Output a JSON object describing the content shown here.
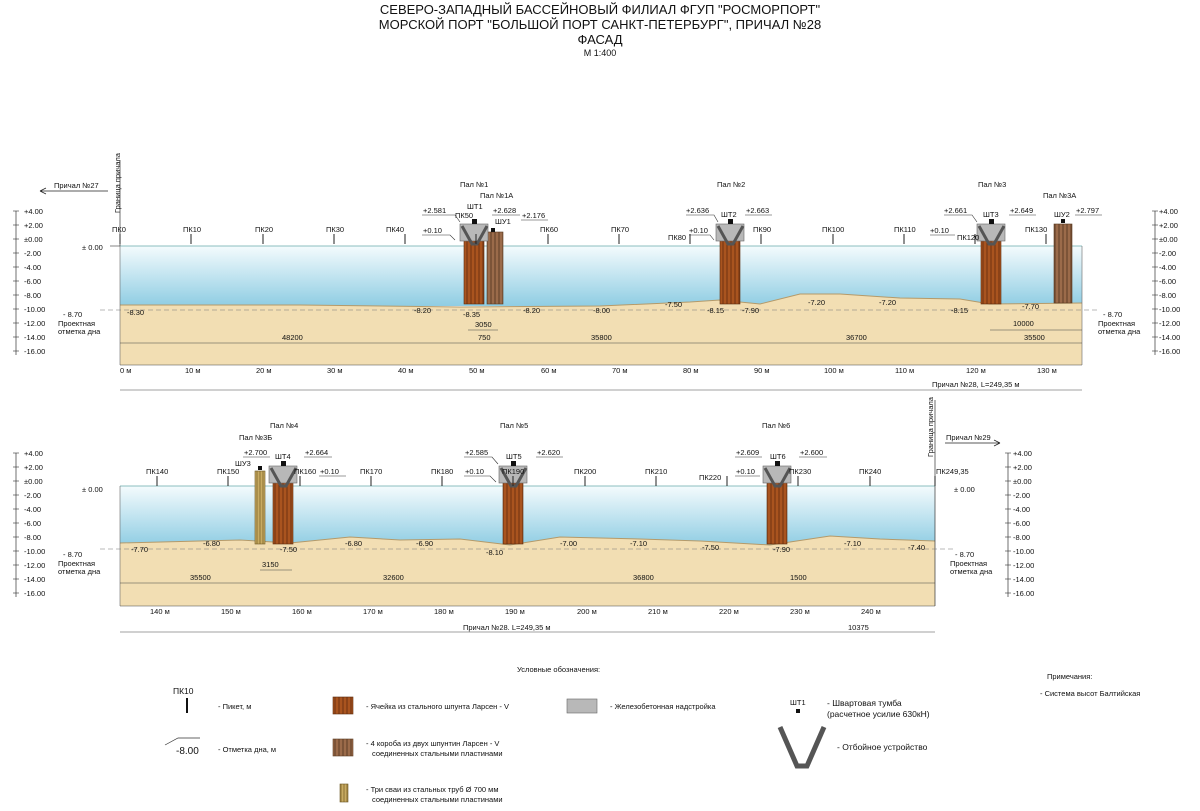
{
  "title": {
    "line1": "СЕВЕРО-ЗАПАДНЫЙ БАССЕЙНОВЫЙ ФИЛИАЛ ФГУП \"РОСМОРПОРТ\"",
    "line2": "МОРСКОЙ ПОРТ \"БОЛЬШОЙ ПОРТ САНКТ-ПЕТЕРБУРГ\", ПРИЧАЛ №28",
    "line3": "ФАСАД",
    "scale": "М 1:400"
  },
  "colors": {
    "water": "#bfe3ef",
    "sand": "#f2deb3",
    "steel": "#a9541f",
    "steel_box": "#9b6b4a",
    "pipes": "#c5a65d",
    "concrete": "#b8b8b8"
  },
  "top": {
    "prichal_left": "Причал №27",
    "granitsa": "Граница причала",
    "zero": "± 0.00",
    "proj_value": "- 8.70",
    "proj_label_1": "Проектная",
    "proj_label_2": "отметка дна",
    "pk_labels": [
      "ПК0",
      "ПК10",
      "ПК20",
      "ПК30",
      "ПК40",
      "ПК50",
      "ПК60",
      "ПК70",
      "ПК80",
      "ПК90",
      "ПК100",
      "ПК110",
      "ПК120",
      "ПК130"
    ],
    "axis": [
      "0 м",
      "10 м",
      "20 м",
      "30 м",
      "40 м",
      "50 м",
      "60 м",
      "70 м",
      "80 м",
      "90 м",
      "100 м",
      "110 м",
      "120 м",
      "130 м"
    ],
    "pal_labels": [
      "Пал №1",
      "Пал №1А",
      "Пал №2",
      "Пал №3",
      "Пал №3А"
    ],
    "bollards": [
      "ШТ1",
      "ШУ1",
      "ШТ2",
      "ШТ3",
      "ШУ2"
    ],
    "elev_tags": [
      "+2.581",
      "+0.10",
      "+2.628",
      "+2.176",
      "+2.636",
      "+0.10",
      "+2.663",
      "+2.661",
      "+0.10",
      "+2.649",
      "+2.797"
    ],
    "depths": [
      "-8.30",
      "-8.20",
      "-8.35",
      "-8.20",
      "-8.00",
      "-7.50",
      "-8.15",
      "-7.90",
      "-7.20",
      "-7.20",
      "-8.15",
      "-7.70"
    ],
    "dims": [
      "48200",
      "750",
      "3050",
      "35800",
      "36700",
      "10000",
      "35500"
    ],
    "total": "Причал №28, L=249,35 м"
  },
  "bottom": {
    "prichal_right": "Причал №29",
    "granitsa": "Граница причала",
    "zero": "± 0.00",
    "proj_value": "- 8.70",
    "proj_label_1": "Проектная",
    "proj_label_2": "отметка дна",
    "pk_labels": [
      "ПК140",
      "ПК150",
      "ПК160",
      "ПК170",
      "ПК180",
      "ПК190",
      "ПК200",
      "ПК210",
      "ПК220",
      "ПК230",
      "ПК240",
      "ПК249,35"
    ],
    "axis": [
      "140 м",
      "150 м",
      "160 м",
      "170 м",
      "180 м",
      "190 м",
      "200 м",
      "210 м",
      "220 м",
      "230 м",
      "240 м"
    ],
    "pal_labels": [
      "Пал №3Б",
      "Пал №4",
      "Пал №5",
      "Пал №6"
    ],
    "bollards": [
      "ШУ3",
      "ШТ4",
      "ШТ5",
      "ШТ6"
    ],
    "elev_tags": [
      "+2.700",
      "+2.664",
      "+0.10",
      "+2.585",
      "+0.10",
      "+2.620",
      "+2.609",
      "+0.10",
      "+2.600"
    ],
    "depths": [
      "-7.70",
      "-6.80",
      "-7.50",
      "-6.80",
      "-6.90",
      "-8.10",
      "-7.00",
      "-7.10",
      "-7.50",
      "-7.90",
      "-7.10",
      "-7.40"
    ],
    "dims": [
      "35500",
      "3150",
      "32600",
      "36800",
      "1500",
      "10375"
    ],
    "total": "Причал №28. L=249,35 м"
  },
  "scale_ticks": [
    "+4.00",
    "+2.00",
    "±0.00",
    "-2.00",
    "-4.00",
    "-6.00",
    "-8.00",
    "-10.00",
    "-12.00",
    "-14.00",
    "-16.00"
  ],
  "legend": {
    "title": "Условные обозначения:",
    "pk_sample": "ПК10",
    "pk_label": "- Пикет, м",
    "depth_sample": "-8.00",
    "depth_label": "- Отметка дна, м",
    "cell_label": "- Ячейка из стального шпунта Ларсен  - V",
    "box_label_1": "- 4 короба из двух шпунтин Ларсен  - V",
    "box_label_2": "соединенных стальными пластинами",
    "pipes_label_1": "- Три сваи из стальных труб  Ø 700 мм",
    "pipes_label_2": "соединенных стальными пластинами",
    "concrete_label": "- Железобетонная надстройка",
    "bollard_sample": "ШТ1",
    "bollard_label_1": "- Швартовая тумба",
    "bollard_label_2": "(расчетное усилие 630кН)",
    "fender_label": "-  Отбойное устройство"
  },
  "notes": {
    "title": "Примечания:",
    "item": "- Система высот Балтийская"
  }
}
